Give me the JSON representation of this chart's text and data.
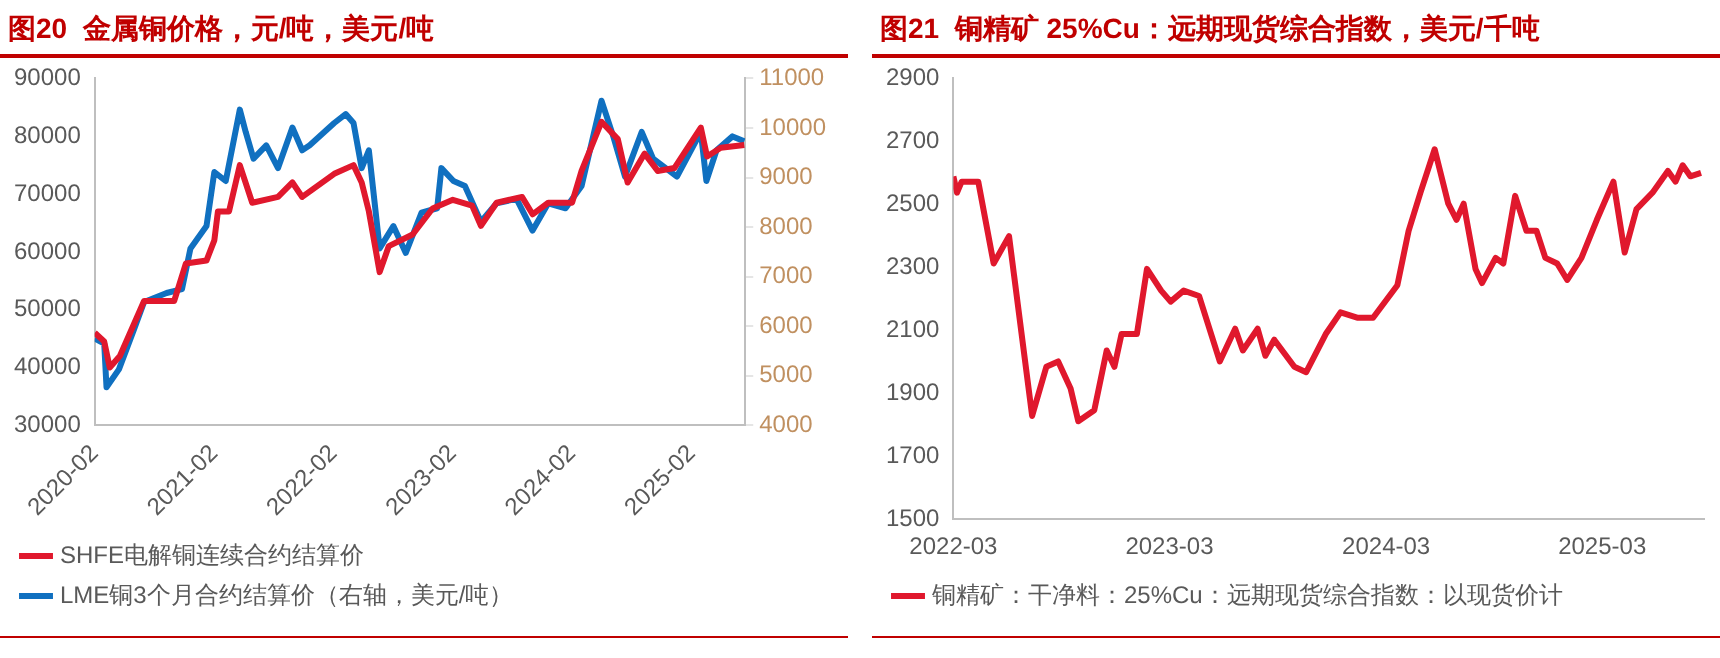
{
  "chart_data": [
    {
      "type": "line",
      "title": "图20  金属铜价格，元/吨，美元/吨",
      "xlim": [
        "2020-02",
        "2025-07-15"
      ],
      "xticks": [
        "2020-02",
        "2021-02",
        "2022-02",
        "2023-02",
        "2024-02",
        "2025-02"
      ],
      "ylim": [
        30000,
        90000
      ],
      "yticks": [
        30000,
        40000,
        50000,
        60000,
        70000,
        80000,
        90000
      ],
      "y2lim": [
        4000,
        11000
      ],
      "y2ticks": [
        4000,
        5000,
        6000,
        7000,
        8000,
        9000,
        10000,
        11000
      ],
      "legend": "bottom",
      "grid": false,
      "series": [
        {
          "name": "SHFE电解铜连续合约结算价",
          "color": "#e0182d",
          "x": [
            "2020-02",
            "2020-03-01",
            "2020-03-18",
            "2020-04-18",
            "2020-07",
            "2020-08-25",
            "2020-10",
            "2020-11-06",
            "2021-01-08",
            "2021-02",
            "2021-02-12",
            "2021-03-18",
            "2021-04-20",
            "2021-05-28",
            "2021-08-15",
            "2021-09-28",
            "2021-10-28",
            "2022-02-03",
            "2022-04-03",
            "2022-04-28",
            "2022-05-20",
            "2022-06-22",
            "2022-07-20",
            "2022-10",
            "2022-12",
            "2023-02",
            "2023-04",
            "2023-04-28",
            "2023-06-15",
            "2023-09",
            "2023-10-03",
            "2023-11-20",
            "2024-02",
            "2024-03",
            "2024-05",
            "2024-06-20",
            "2024-07-20",
            "2024-09-10",
            "2024-10-20",
            "2024-12-10",
            "2025-03",
            "2025-03-20",
            "2025-05",
            "2025-07-12"
          ],
          "values": [
            46000,
            44500,
            40000,
            42000,
            51500,
            51500,
            51500,
            58000,
            58500,
            62000,
            67000,
            67000,
            75000,
            68500,
            69500,
            72000,
            69500,
            73500,
            75000,
            72000,
            67000,
            56500,
            61000,
            63000,
            67500,
            69000,
            68000,
            64500,
            68500,
            69500,
            66500,
            68500,
            68500,
            74000,
            82500,
            79500,
            72000,
            77000,
            74000,
            74500,
            81500,
            76500,
            78000,
            78500
          ]
        },
        {
          "name": "LME铜3个月合约结算价（右轴，美元/吨）",
          "color": "#1070c0",
          "axis": "y2",
          "x": [
            "2020-02",
            "2020-03-01",
            "2020-03-08",
            "2020-04-15",
            "2020-06",
            "2020-07",
            "2020-09-08",
            "2020-10-25",
            "2020-11-20",
            "2021-01-08",
            "2021-02",
            "2021-03-08",
            "2021-04-20",
            "2021-05-08",
            "2021-06",
            "2021-07-10",
            "2021-08-15",
            "2021-09-28",
            "2021-10-28",
            "2021-11-20",
            "2022-02-03",
            "2022-03-10",
            "2022-04-03",
            "2022-04-28",
            "2022-05-20",
            "2022-06-22",
            "2022-08-03",
            "2022-09-10",
            "2022-10-28",
            "2022-12-15",
            "2022-12-28",
            "2023-02-03",
            "2023-03-10",
            "2023-04-28",
            "2023-06-15",
            "2023-08-15",
            "2023-10-03",
            "2023-11-20",
            "2024-01-12",
            "2024-03",
            "2024-05",
            "2024-06-06",
            "2024-07-12",
            "2024-09",
            "2024-10-06",
            "2024-12-18",
            "2025-03",
            "2025-03-18",
            "2025-04-18",
            "2025-06-06",
            "2025-07-12"
          ],
          "values": [
            5750,
            5650,
            4770,
            5130,
            5950,
            6490,
            6670,
            6750,
            7570,
            8020,
            9110,
            8930,
            10370,
            9920,
            9380,
            9650,
            9190,
            10010,
            9550,
            9650,
            10100,
            10280,
            10100,
            9190,
            9550,
            7570,
            8020,
            7480,
            8290,
            8380,
            9190,
            8930,
            8830,
            8110,
            8480,
            8570,
            7930,
            8480,
            8380,
            8830,
            10550,
            9830,
            9020,
            9920,
            9380,
            9020,
            9920,
            8930,
            9550,
            9830,
            9730
          ]
        }
      ]
    },
    {
      "type": "line",
      "title": "图21  铜精矿 25%Cu：远期现货综合指数，美元/千吨",
      "xlim": [
        "2022-03",
        "2025-08-20"
      ],
      "xticks": [
        "2022-03",
        "2023-03",
        "2024-03",
        "2025-03"
      ],
      "ylim": [
        1500,
        2900
      ],
      "yticks": [
        1500,
        1700,
        1900,
        2100,
        2300,
        2500,
        2700,
        2900
      ],
      "legend": "bottom",
      "grid": false,
      "series": [
        {
          "name": "铜精矿：干净料：25%Cu：远期现货综合指数：以现货价计",
          "color": "#e0182d",
          "x": [
            "2022-03",
            "2022-03-07",
            "2022-03-15",
            "2022-04-12",
            "2022-05-08",
            "2022-06-03",
            "2022-07-12",
            "2022-08-05",
            "2022-08-25",
            "2022-09-15",
            "2022-09-28",
            "2022-10-25",
            "2022-11-15",
            "2022-11-28",
            "2022-12-10",
            "2023-01-05",
            "2023-01-22",
            "2023-02-15",
            "2023-03-03",
            "2023-03-25",
            "2023-04-20",
            "2023-05-25",
            "2023-06-20",
            "2023-07-03",
            "2023-07-28",
            "2023-08-10",
            "2023-08-25",
            "2023-09-28",
            "2023-10-18",
            "2023-11-20",
            "2023-12-15",
            "2024-01-12",
            "2024-02-08",
            "2024-03-20",
            "2024-04-08",
            "2024-04-28",
            "2024-05-22",
            "2024-06-14",
            "2024-06-28",
            "2024-07-10",
            "2024-07-30",
            "2024-08-10",
            "2024-09-02",
            "2024-09-15",
            "2024-10-05",
            "2024-10-24",
            "2024-11-10",
            "2024-11-25",
            "2024-12-15",
            "2025-01-01",
            "2025-01-25",
            "2025-02-20",
            "2025-03-20",
            "2025-04-08",
            "2025-04-28",
            "2025-05-25",
            "2025-06-20",
            "2025-07-03",
            "2025-07-15",
            "2025-07-28",
            "2025-08-15"
          ],
          "values": [
            2589,
            2537,
            2572,
            2572,
            2312,
            2399,
            1828,
            1984,
            2001,
            1915,
            1811,
            1846,
            2036,
            1984,
            2088,
            2088,
            2295,
            2226,
            2191,
            2226,
            2209,
            2001,
            2105,
            2036,
            2105,
            2019,
            2070,
            1984,
            1967,
            2088,
            2157,
            2140,
            2140,
            2243,
            2416,
            2537,
            2675,
            2502,
            2451,
            2502,
            2295,
            2250,
            2330,
            2312,
            2527,
            2416,
            2416,
            2330,
            2312,
            2260,
            2330,
            2451,
            2572,
            2347,
            2485,
            2537,
            2606,
            2572,
            2624,
            2589,
            2600
          ]
        }
      ]
    }
  ]
}
